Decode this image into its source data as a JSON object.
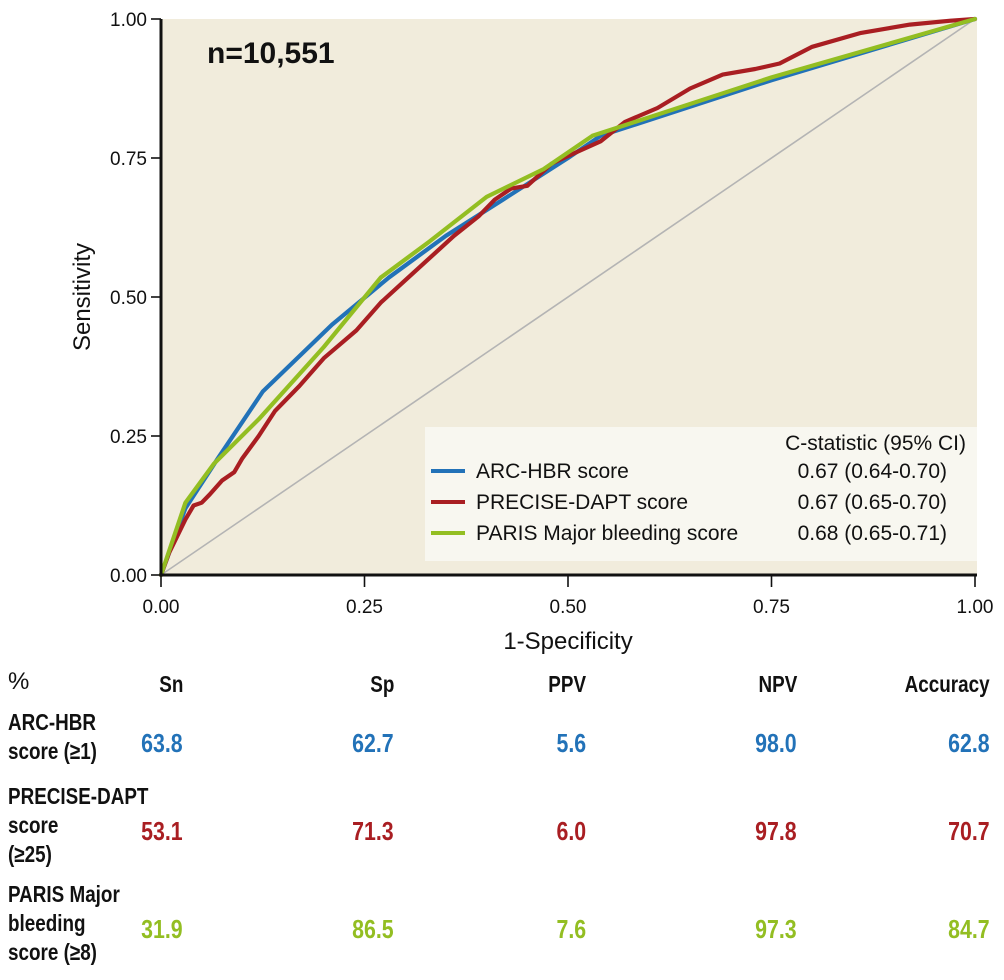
{
  "chart_data": {
    "type": "line",
    "title": "",
    "annotation": "n=10,551",
    "xlabel": "1-Specificity",
    "ylabel": "Sensitivity",
    "xlim": [
      0,
      1
    ],
    "ylim": [
      0,
      1
    ],
    "xticks": [
      "0.00",
      "0.25",
      "0.50",
      "0.75",
      "1.00"
    ],
    "yticks": [
      "0.00",
      "0.25",
      "0.50",
      "0.75",
      "1.00"
    ],
    "grid": false,
    "reference_line": {
      "name": "chance",
      "points": [
        [
          0,
          0
        ],
        [
          1,
          1
        ]
      ],
      "color": "#b4b4b4"
    },
    "legend": {
      "placement": "bottom-right",
      "header": "C-statistic (95% CI)",
      "entries": [
        {
          "label": "ARC-HBR score",
          "stat": "0.67 (0.64-0.70)"
        },
        {
          "label": "PRECISE-DAPT score",
          "stat": "0.67 (0.65-0.70)"
        },
        {
          "label": "PARIS Major bleeding score",
          "stat": "0.68 (0.65-0.71)"
        }
      ]
    },
    "series": [
      {
        "name": "ARC-HBR score",
        "color": "#2272b8",
        "x": [
          0,
          0.03,
          0.07,
          0.125,
          0.21,
          0.28,
          0.35,
          0.42,
          0.5,
          0.54,
          0.75,
          1
        ],
        "y": [
          0,
          0.12,
          0.21,
          0.33,
          0.45,
          0.535,
          0.61,
          0.675,
          0.75,
          0.79,
          0.89,
          1
        ]
      },
      {
        "name": "PRECISE-DAPT score",
        "color": "#a91e22",
        "x": [
          0,
          0.01,
          0.02,
          0.03,
          0.04,
          0.05,
          0.06,
          0.075,
          0.09,
          0.1,
          0.12,
          0.14,
          0.17,
          0.2,
          0.24,
          0.27,
          0.3,
          0.33,
          0.36,
          0.39,
          0.41,
          0.43,
          0.45,
          0.48,
          0.51,
          0.54,
          0.57,
          0.61,
          0.65,
          0.69,
          0.73,
          0.76,
          0.8,
          0.86,
          0.92,
          0.97,
          1
        ],
        "y": [
          0,
          0.04,
          0.07,
          0.1,
          0.125,
          0.13,
          0.145,
          0.17,
          0.185,
          0.21,
          0.25,
          0.295,
          0.34,
          0.39,
          0.44,
          0.49,
          0.53,
          0.57,
          0.61,
          0.645,
          0.675,
          0.695,
          0.7,
          0.74,
          0.76,
          0.78,
          0.815,
          0.84,
          0.875,
          0.9,
          0.91,
          0.92,
          0.95,
          0.975,
          0.99,
          0.997,
          1
        ]
      },
      {
        "name": "PARIS Major bleeding score",
        "color": "#93be22",
        "x": [
          0,
          0.03,
          0.065,
          0.12,
          0.2,
          0.27,
          0.33,
          0.4,
          0.47,
          0.53,
          0.75,
          1
        ],
        "y": [
          0,
          0.13,
          0.2,
          0.28,
          0.41,
          0.535,
          0.6,
          0.68,
          0.73,
          0.79,
          0.895,
          1
        ]
      }
    ]
  },
  "table": {
    "corner": "%",
    "headers": [
      "Sn",
      "Sp",
      "PPV",
      "NPV",
      "Accuracy"
    ],
    "rows": [
      {
        "label_lines": [
          "ARC-HBR",
          "score (≥1)"
        ],
        "color": "#2272b8",
        "values": [
          "63.8",
          "62.7",
          "5.6",
          "98.0",
          "62.8"
        ]
      },
      {
        "label_lines": [
          "PRECISE-DAPT",
          "score",
          "(≥25)"
        ],
        "color": "#a91e22",
        "values": [
          "53.1",
          "71.3",
          "6.0",
          "97.8",
          "70.7"
        ]
      },
      {
        "label_lines": [
          "PARIS Major",
          "bleeding",
          "score (≥8)"
        ],
        "color": "#93be22",
        "values": [
          "31.9",
          "86.5",
          "7.6",
          "97.3",
          "84.7"
        ]
      }
    ]
  },
  "colors": {
    "plot_background": "#f1ecdc",
    "legend_background": "#f8f7f0",
    "axis": "#111111"
  }
}
